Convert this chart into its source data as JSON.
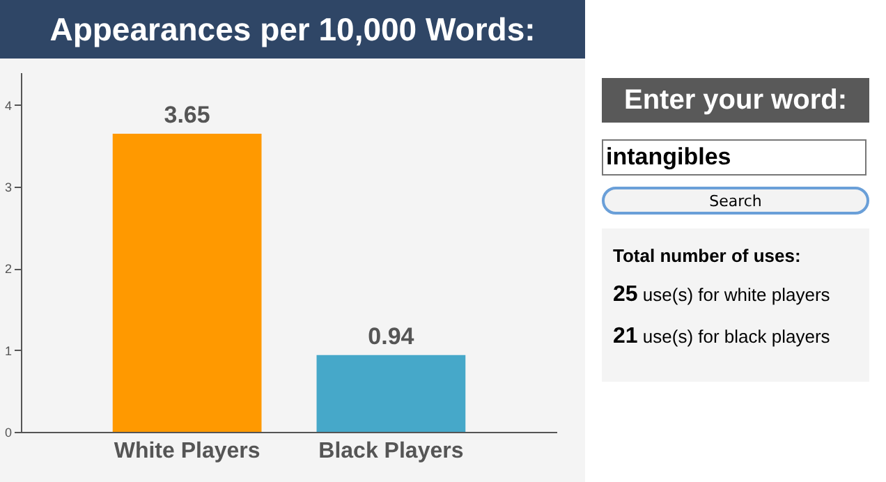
{
  "chart_data": [
    {
      "type": "bar",
      "title": "Appearances per 10,000 Words:",
      "categories": [
        "White Players",
        "Black Players"
      ],
      "values": [
        3.65,
        0.94
      ],
      "colors": [
        "#ff9900",
        "#46a8c9"
      ],
      "ylim": [
        0,
        4.4
      ],
      "yticks": [
        0,
        1,
        2,
        3,
        4
      ],
      "grid": false,
      "data_labels": true
    },
    {
      "type": "other",
      "title": "Enter your word:",
      "annotations": [
        "intangibles",
        "Search",
        "Total number of uses:",
        "25 use(s) for white players",
        "21 use(s) for black players"
      ]
    }
  ]
}
